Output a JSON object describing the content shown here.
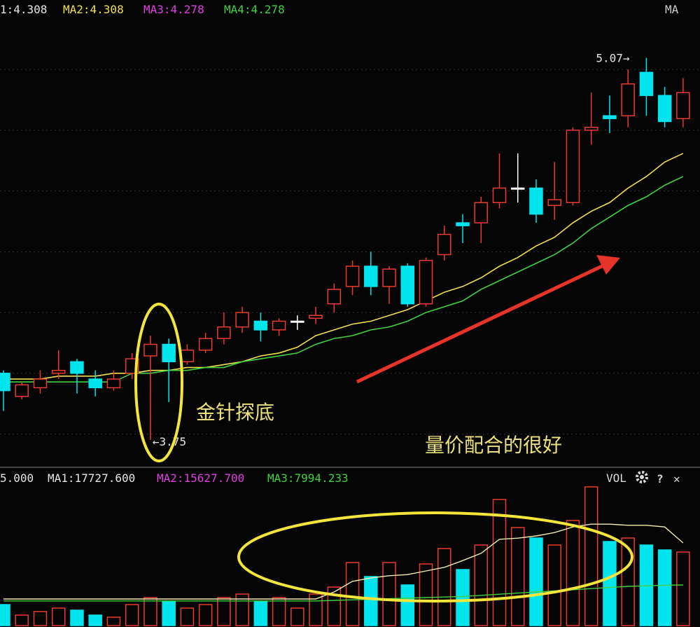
{
  "chart_data": [
    {
      "type": "candlestick",
      "legend": [
        {
          "text": "1:4.308",
          "color": "#e6e6e6"
        },
        {
          "text": "MA2:4.308",
          "color": "#f2e04e"
        },
        {
          "text": "MA3:4.278",
          "color": "#e23ee2"
        },
        {
          "text": "MA4:4.278",
          "color": "#3fd33f"
        }
      ],
      "corner_label": "MA",
      "up_color": "#ec3a2c",
      "down_color": "#00e4ee",
      "flat_color": "#ffffff",
      "ylim": [
        3.66,
        5.27
      ],
      "ygrid": [
        5.03,
        4.82,
        4.61,
        4.4,
        4.19,
        3.98,
        3.77
      ],
      "open": [
        3.98,
        3.9,
        3.93,
        3.98,
        4.02,
        3.96,
        3.93,
        3.98,
        4.04,
        4.08,
        4.02,
        4.06,
        4.1,
        4.14,
        4.16,
        4.13,
        4.16,
        4.17,
        4.22,
        4.28,
        4.35,
        4.28,
        4.35,
        4.22,
        4.39,
        4.5,
        4.5,
        4.57,
        4.62,
        4.62,
        4.56,
        4.57,
        4.82,
        4.87,
        4.87,
        5.02,
        4.94,
        4.86
      ],
      "high": [
        3.99,
        3.95,
        3.99,
        4.06,
        4.03,
        3.99,
        3.99,
        4.05,
        4.11,
        4.1,
        4.08,
        4.12,
        4.19,
        4.21,
        4.19,
        4.17,
        4.18,
        4.21,
        4.29,
        4.37,
        4.4,
        4.35,
        4.36,
        4.38,
        4.49,
        4.53,
        4.59,
        4.74,
        4.74,
        4.65,
        4.71,
        4.83,
        4.95,
        4.94,
        5.03,
        5.07,
        4.97,
        5.0
      ],
      "low": [
        3.85,
        3.89,
        3.91,
        3.96,
        3.91,
        3.9,
        3.92,
        3.96,
        3.75,
        3.88,
        4.01,
        4.05,
        4.08,
        4.12,
        4.09,
        4.11,
        4.13,
        4.15,
        4.19,
        4.25,
        4.25,
        4.22,
        4.21,
        4.21,
        4.37,
        4.43,
        4.43,
        4.55,
        4.57,
        4.5,
        4.51,
        4.56,
        4.77,
        4.81,
        4.83,
        4.87,
        4.83,
        4.83
      ],
      "close": [
        3.92,
        3.94,
        3.96,
        3.99,
        3.98,
        3.93,
        3.96,
        4.03,
        4.08,
        4.02,
        4.06,
        4.1,
        4.14,
        4.19,
        4.13,
        4.16,
        4.16,
        4.18,
        4.27,
        4.35,
        4.28,
        4.34,
        4.22,
        4.37,
        4.46,
        4.49,
        4.57,
        4.62,
        4.62,
        4.53,
        4.58,
        4.82,
        4.83,
        4.86,
        4.98,
        4.94,
        4.85,
        4.95
      ],
      "ma_lines": [
        {
          "color": "#f2e04e",
          "values": [
            3.96,
            3.96,
            3.96,
            3.97,
            3.97,
            3.97,
            3.98,
            3.98,
            3.99,
            3.99,
            4.0,
            4.0,
            4.01,
            4.02,
            4.04,
            4.05,
            4.07,
            4.11,
            4.13,
            4.15,
            4.16,
            4.18,
            4.2,
            4.23,
            4.26,
            4.28,
            4.31,
            4.35,
            4.38,
            4.42,
            4.45,
            4.5,
            4.54,
            4.57,
            4.62,
            4.66,
            4.71,
            4.74
          ]
        },
        {
          "color": "#3fd33f",
          "values": [
            3.95,
            3.95,
            3.95,
            3.95,
            3.95,
            3.95,
            3.95,
            3.98,
            3.98,
            3.99,
            3.99,
            4.0,
            4.0,
            4.02,
            4.03,
            4.04,
            4.05,
            4.08,
            4.1,
            4.11,
            4.13,
            4.14,
            4.16,
            4.19,
            4.21,
            4.23,
            4.27,
            4.3,
            4.33,
            4.36,
            4.39,
            4.43,
            4.48,
            4.52,
            4.56,
            4.59,
            4.63,
            4.66
          ]
        }
      ],
      "annotations": [
        {
          "value": 5.07,
          "label": "5.07→"
        },
        {
          "value": 3.75,
          "label": "←3.75"
        }
      ],
      "notes": [
        "金针探底",
        "量价配合的很好"
      ]
    },
    {
      "type": "bar",
      "legend": [
        {
          "text": "5.000",
          "color": "#e6e6e6"
        },
        {
          "text": "MA1:17727.600",
          "color": "#e6e6e6"
        },
        {
          "text": "MA2:15627.700",
          "color": "#e23ee2"
        },
        {
          "text": "MA3:7994.233",
          "color": "#3fd33f"
        }
      ],
      "corner_label": "VOL",
      "help_label": "?",
      "close_label": "✕",
      "ylim": [
        0,
        25000
      ],
      "values": [
        3750,
        1875,
        2500,
        3125,
        2750,
        1875,
        1500,
        3750,
        5000,
        4375,
        3125,
        3750,
        5000,
        5625,
        4375,
        5000,
        3125,
        5625,
        6875,
        11250,
        8750,
        11250,
        7250,
        11000,
        13750,
        10000,
        14375,
        22500,
        17500,
        15625,
        14375,
        18750,
        24750,
        15000,
        15625,
        14375,
        13500,
        13125
      ],
      "ma_lines": [
        {
          "color": "#f2ecae",
          "values": [
            4750,
            4750,
            4750,
            4750,
            4750,
            4750,
            4750,
            4750,
            4750,
            4750,
            4750,
            4750,
            4750,
            4750,
            4750,
            4750,
            4750,
            4750,
            6000,
            7900,
            8500,
            8900,
            9100,
            9750,
            10400,
            11600,
            12900,
            15400,
            15600,
            16000,
            16600,
            17600,
            18100,
            18100,
            17900,
            17900,
            17600,
            14750
          ]
        },
        {
          "color": "#3fd33f",
          "values": [
            4400,
            4400,
            4400,
            4400,
            4400,
            4400,
            4400,
            4400,
            4400,
            4400,
            4400,
            4400,
            4400,
            4400,
            4400,
            4400,
            4400,
            4400,
            4500,
            4600,
            4700,
            4800,
            4900,
            5000,
            5100,
            5200,
            5400,
            5600,
            5800,
            6000,
            6200,
            6400,
            6600,
            6800,
            7000,
            7100,
            7200,
            7250
          ]
        }
      ]
    }
  ]
}
